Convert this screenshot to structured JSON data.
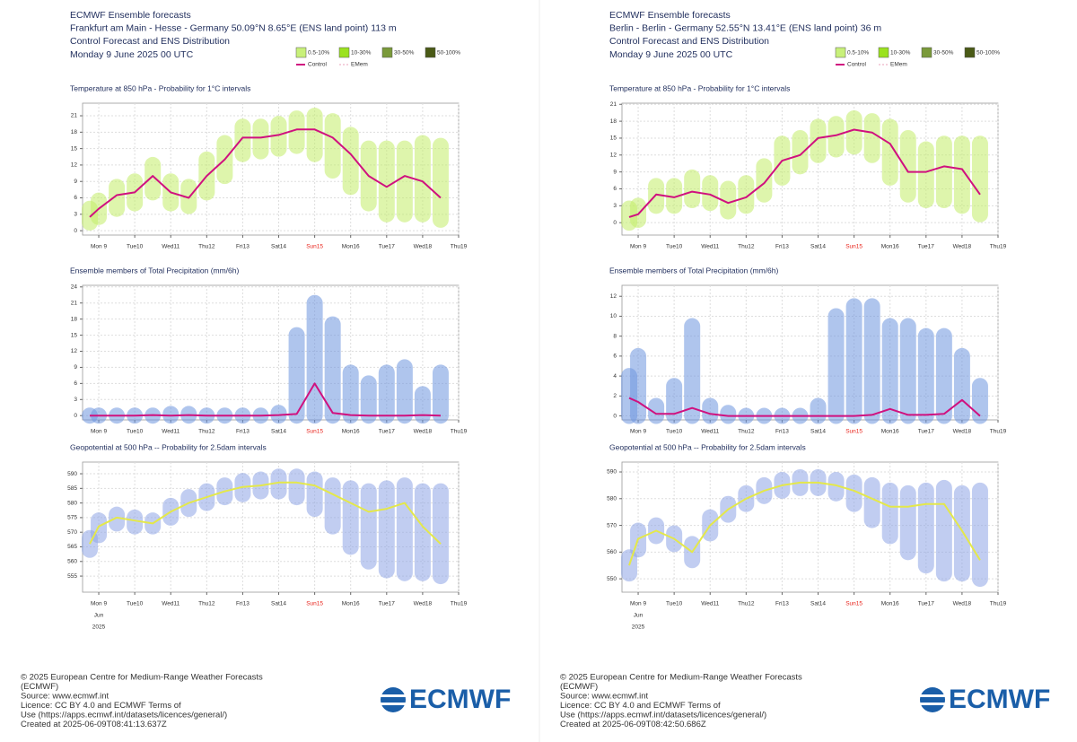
{
  "panels": [
    {
      "header": {
        "lines": [
          "ECMWF Ensemble forecasts",
          "Frankfurt am Main - Hesse - Germany 50.09°N 8.65°E (ENS land point) 113 m",
          "Control Forecast and ENS Distribution",
          "Monday 9 June 2025 00 UTC"
        ]
      },
      "legend": {
        "bins": [
          {
            "label": "0.5-10%",
            "color": "#c8f07a"
          },
          {
            "label": "10-30%",
            "color": "#9be21f"
          },
          {
            "label": "30-50%",
            "color": "#7a9a3a"
          },
          {
            "label": "50-100%",
            "color": "#4a5a16"
          }
        ],
        "lines": [
          {
            "label": "Control",
            "color": "#d0117f"
          },
          {
            "label": "EMem",
            "color": "#e8a0b8"
          }
        ]
      },
      "footer": {
        "lines": [
          "© 2025 European Centre for Medium-Range Weather Forecasts",
          "(ECMWF)",
          "Source: www.ecmwf.int",
          "Licence: CC BY 4.0 and ECMWF Terms of",
          "Use (https://apps.ecmwf.int/datasets/licences/general/)",
          "Created at 2025-06-09T08:41:13.637Z"
        ],
        "logo": "ECMWF"
      }
    },
    {
      "header": {
        "lines": [
          "ECMWF Ensemble forecasts",
          "Berlin - Berlin - Germany 52.55°N 13.41°E (ENS land point) 36 m",
          "Control Forecast and ENS Distribution",
          "Monday 9 June 2025 00 UTC"
        ]
      },
      "legend": {
        "bins": [
          {
            "label": "0.5-10%",
            "color": "#c8f07a"
          },
          {
            "label": "10-30%",
            "color": "#9be21f"
          },
          {
            "label": "30-50%",
            "color": "#7a9a3a"
          },
          {
            "label": "50-100%",
            "color": "#4a5a16"
          }
        ],
        "lines": [
          {
            "label": "Control",
            "color": "#d0117f"
          },
          {
            "label": "EMem",
            "color": "#e8a0b8"
          }
        ]
      },
      "footer": {
        "lines": [
          "© 2025 European Centre for Medium-Range Weather Forecasts",
          "(ECMWF)",
          "Source: www.ecmwf.int",
          "Licence: CC BY 4.0 and ECMWF Terms of",
          "Use (https://apps.ecmwf.int/datasets/licences/general/)",
          "Created at 2025-06-09T08:42:50.686Z"
        ],
        "logo": "ECMWF"
      }
    }
  ],
  "chart_data": [
    {
      "type": "line",
      "title": "Temperature at 850 hPa - Probability for 1°C intervals",
      "xlim": [
        -0.45,
        10
      ],
      "xticks": [
        {
          "value": 0,
          "label": "Mon 9"
        },
        {
          "value": 1,
          "label": "Tue10"
        },
        {
          "value": 2,
          "label": "Wed11"
        },
        {
          "value": 3,
          "label": "Thu12"
        },
        {
          "value": 4,
          "label": "Fri13"
        },
        {
          "value": 5,
          "label": "Sat14"
        },
        {
          "value": 6,
          "label": "Sun15",
          "color": "#e8241c"
        },
        {
          "value": 7,
          "label": "Mon16"
        },
        {
          "value": 8,
          "label": "Tue17"
        },
        {
          "value": 9,
          "label": "Wed18"
        },
        {
          "value": 10,
          "label": "Thu19"
        }
      ],
      "ylim": [
        -0.8,
        23.3
      ],
      "yticks": [
        0,
        3,
        6,
        9,
        12,
        15,
        18,
        21
      ],
      "grid": true,
      "x": [
        -0.25,
        0,
        0.5,
        1,
        1.5,
        2,
        2.5,
        3,
        3.5,
        4,
        4.5,
        5,
        5.5,
        6,
        6.5,
        7,
        7.5,
        8,
        8.5,
        9,
        9.5
      ],
      "spread": {
        "color": "#c4ee6a",
        "low": [
          1.5,
          2.5,
          4,
          5,
          7,
          5,
          4.5,
          7,
          10,
          14,
          14.5,
          15,
          15.5,
          14,
          11,
          8,
          5,
          3,
          3,
          3,
          2
        ],
        "high": [
          4,
          5.5,
          8,
          9,
          12,
          9,
          8,
          13,
          16,
          19,
          19,
          19.5,
          20.5,
          21,
          20,
          17.5,
          15,
          15,
          15,
          16,
          15.5
        ]
      },
      "control": {
        "color": "#d0117f",
        "values": [
          2.5,
          4,
          6.5,
          7,
          10,
          7,
          6,
          10,
          13,
          17,
          17,
          17.5,
          18.5,
          18.5,
          17,
          14,
          10,
          8,
          10,
          9,
          6
        ]
      }
    },
    {
      "type": "line",
      "title": "Ensemble members of Total Precipitation (mm/6h)",
      "xlim": [
        -0.45,
        10
      ],
      "xticks": [
        {
          "value": 0,
          "label": "Mon 9"
        },
        {
          "value": 1,
          "label": "Tue10"
        },
        {
          "value": 2,
          "label": "Wed11"
        },
        {
          "value": 3,
          "label": "Thu12"
        },
        {
          "value": 4,
          "label": "Fri13"
        },
        {
          "value": 5,
          "label": "Sat14"
        },
        {
          "value": 6,
          "label": "Sun15",
          "color": "#e8241c"
        },
        {
          "value": 7,
          "label": "Mon16"
        },
        {
          "value": 8,
          "label": "Tue17"
        },
        {
          "value": 9,
          "label": "Wed18"
        },
        {
          "value": 10,
          "label": "Thu19"
        }
      ],
      "ylim": [
        -0.8,
        24.3
      ],
      "yticks": [
        0,
        3,
        6,
        9,
        12,
        15,
        18,
        21,
        24
      ],
      "grid": true,
      "x": [
        -0.25,
        0,
        0.5,
        1,
        1.5,
        2,
        2.5,
        3,
        3.5,
        4,
        4.5,
        5,
        5.5,
        6,
        6.5,
        7,
        7.5,
        8,
        8.5,
        9,
        9.5
      ],
      "spread": {
        "color": "#6f96e0",
        "low": [
          0,
          0,
          0,
          0,
          0,
          0,
          0,
          0,
          0,
          0,
          0,
          0,
          0,
          0,
          0,
          0,
          0,
          0,
          0,
          0,
          0
        ],
        "high": [
          0,
          0,
          0,
          0,
          0,
          0.3,
          0.3,
          0,
          0,
          0,
          0,
          0.5,
          15,
          21,
          17,
          8,
          6,
          8,
          9,
          4,
          8
        ]
      },
      "control": {
        "color": "#d0117f",
        "values": [
          0,
          0,
          0,
          0,
          0.1,
          0,
          0.1,
          0,
          0,
          0,
          0,
          0.1,
          0.3,
          6,
          0.5,
          0.1,
          0,
          0,
          0,
          0.1,
          0
        ]
      }
    },
    {
      "type": "line",
      "title": "Geopotential at 500 hPa -- Probability for 2.5dam intervals",
      "xlim": [
        -0.45,
        10
      ],
      "xticks": [
        {
          "value": 0,
          "label": "Mon 9"
        },
        {
          "value": 1,
          "label": "Tue10"
        },
        {
          "value": 2,
          "label": "Wed11"
        },
        {
          "value": 3,
          "label": "Thu12"
        },
        {
          "value": 4,
          "label": "Fri13"
        },
        {
          "value": 5,
          "label": "Sat14"
        },
        {
          "value": 6,
          "label": "Sun15",
          "color": "#e8241c"
        },
        {
          "value": 7,
          "label": "Mon16"
        },
        {
          "value": 8,
          "label": "Tue17"
        },
        {
          "value": 9,
          "label": "Wed18"
        },
        {
          "value": 10,
          "label": "Thu19"
        }
      ],
      "date_labels": [
        "Jun",
        "2025"
      ],
      "ylim": [
        549.5,
        594
      ],
      "yticks": [
        555,
        560,
        565,
        570,
        575,
        580,
        585,
        590
      ],
      "grid": true,
      "x": [
        -0.25,
        0,
        0.5,
        1,
        1.5,
        2,
        2.5,
        3,
        3.5,
        4,
        4.5,
        5,
        5.5,
        6,
        6.5,
        7,
        7.5,
        8,
        8.5,
        9,
        9.5
      ],
      "spread": {
        "color": "#8fa6e6",
        "low": [
          564,
          569,
          573,
          572,
          572,
          575,
          578,
          580,
          582,
          583,
          584,
          584,
          582,
          578,
          572,
          565,
          560,
          557,
          556,
          556,
          555
        ],
        "high": [
          568,
          574,
          576,
          575,
          574,
          579,
          582,
          584,
          586,
          587.5,
          588,
          589,
          589,
          588,
          586,
          585,
          584,
          585,
          586,
          584,
          584
        ]
      },
      "control": {
        "color": "#e4e84a",
        "values": [
          566,
          572,
          575,
          574,
          573,
          577,
          580,
          582,
          584,
          585.5,
          586,
          587,
          587,
          586,
          583,
          580,
          577,
          578,
          580,
          572,
          566
        ]
      }
    },
    {
      "type": "line",
      "title": "Temperature at 850 hPa - Probability for 1°C intervals",
      "xlim": [
        -0.45,
        10
      ],
      "xticks": [
        {
          "value": 0,
          "label": "Mon 9"
        },
        {
          "value": 1,
          "label": "Tue10"
        },
        {
          "value": 2,
          "label": "Wed11"
        },
        {
          "value": 3,
          "label": "Thu12"
        },
        {
          "value": 4,
          "label": "Fri13"
        },
        {
          "value": 5,
          "label": "Sat14"
        },
        {
          "value": 6,
          "label": "Sun15",
          "color": "#e8241c"
        },
        {
          "value": 7,
          "label": "Mon16"
        },
        {
          "value": 8,
          "label": "Tue17"
        },
        {
          "value": 9,
          "label": "Wed18"
        },
        {
          "value": 10,
          "label": "Thu19"
        }
      ],
      "ylim": [
        -2.2,
        21.2
      ],
      "yticks": [
        0,
        3,
        6,
        9,
        12,
        15,
        18,
        21
      ],
      "grid": true,
      "x": [
        -0.25,
        0,
        0.5,
        1,
        1.5,
        2,
        2.5,
        3,
        3.5,
        4,
        4.5,
        5,
        5.5,
        6,
        6.5,
        7,
        7.5,
        8,
        8.5,
        9,
        9.5
      ],
      "spread": {
        "color": "#c4ee6a",
        "low": [
          0,
          0.5,
          3,
          3,
          4,
          3.5,
          2,
          3,
          5,
          8,
          10,
          12,
          13,
          13.5,
          12,
          8,
          5,
          4,
          4,
          3,
          1.5
        ],
        "high": [
          2.5,
          3,
          6.5,
          6.5,
          8,
          7,
          6,
          7,
          10,
          14,
          15,
          17,
          17.5,
          18.5,
          18,
          17,
          15,
          13,
          14,
          14,
          14
        ]
      },
      "control": {
        "color": "#d0117f",
        "values": [
          1,
          1.5,
          5,
          4.5,
          5.5,
          5,
          3.5,
          4.5,
          7,
          11,
          12,
          15,
          15.5,
          16.5,
          16,
          14,
          9,
          9,
          10,
          9.5,
          5
        ]
      }
    },
    {
      "type": "line",
      "title": "Ensemble members of Total Precipitation (mm/6h)",
      "xlim": [
        -0.45,
        10
      ],
      "xticks": [
        {
          "value": 0,
          "label": "Mon 9"
        },
        {
          "value": 1,
          "label": "Tue10"
        },
        {
          "value": 2,
          "label": "Wed11"
        },
        {
          "value": 3,
          "label": "Thu12"
        },
        {
          "value": 4,
          "label": "Fri13"
        },
        {
          "value": 5,
          "label": "Sat14"
        },
        {
          "value": 6,
          "label": "Sun15",
          "color": "#e8241c"
        },
        {
          "value": 7,
          "label": "Mon16"
        },
        {
          "value": 8,
          "label": "Tue17"
        },
        {
          "value": 9,
          "label": "Wed18"
        },
        {
          "value": 10,
          "label": "Thu19"
        }
      ],
      "ylim": [
        -0.4,
        13.1
      ],
      "yticks": [
        0,
        2,
        4,
        6,
        8,
        10,
        12
      ],
      "grid": true,
      "x": [
        -0.25,
        0,
        0.5,
        1,
        1.5,
        2,
        2.5,
        3,
        3.5,
        4,
        4.5,
        5,
        5.5,
        6,
        6.5,
        7,
        7.5,
        8,
        8.5,
        9,
        9.5
      ],
      "spread": {
        "color": "#6f96e0",
        "low": [
          0,
          0,
          0,
          0,
          0,
          0,
          0,
          0,
          0,
          0,
          0,
          0,
          0,
          0,
          0,
          0,
          0,
          0,
          0,
          0,
          0
        ],
        "high": [
          4,
          6,
          1,
          3,
          9,
          1,
          0.3,
          0,
          0,
          0,
          0,
          1,
          10,
          11,
          11,
          9,
          9,
          8,
          8,
          6,
          3
        ]
      },
      "control": {
        "color": "#d0117f",
        "values": [
          1.8,
          1.4,
          0.2,
          0.2,
          0.8,
          0.2,
          0,
          0,
          0,
          0,
          0,
          0,
          0,
          0,
          0.1,
          0.7,
          0.1,
          0.1,
          0.2,
          1.6,
          0
        ]
      }
    },
    {
      "type": "line",
      "title": "Geopotential at 500 hPa -- Probability for 2.5dam intervals",
      "xlim": [
        -0.45,
        10
      ],
      "xticks": [
        {
          "value": 0,
          "label": "Mon 9"
        },
        {
          "value": 1,
          "label": "Tue10"
        },
        {
          "value": 2,
          "label": "Wed11"
        },
        {
          "value": 3,
          "label": "Thu12"
        },
        {
          "value": 4,
          "label": "Fri13"
        },
        {
          "value": 5,
          "label": "Sat14"
        },
        {
          "value": 6,
          "label": "Sun15",
          "color": "#e8241c"
        },
        {
          "value": 7,
          "label": "Mon16"
        },
        {
          "value": 8,
          "label": "Tue17"
        },
        {
          "value": 9,
          "label": "Wed18"
        },
        {
          "value": 10,
          "label": "Thu19"
        }
      ],
      "date_labels": [
        "Jun",
        "2025"
      ],
      "ylim": [
        545,
        593.7
      ],
      "yticks": [
        550,
        560,
        570,
        580,
        590
      ],
      "grid": true,
      "x": [
        -0.25,
        0,
        0.5,
        1,
        1.5,
        2,
        2.5,
        3,
        3.5,
        4,
        4.5,
        5,
        5.5,
        6,
        6.5,
        7,
        7.5,
        8,
        8.5,
        9,
        9.5
      ],
      "spread": {
        "color": "#8fa6e6",
        "low": [
          552,
          561,
          566,
          563,
          557,
          567,
          574,
          578,
          581,
          583,
          584,
          584,
          582,
          578,
          572,
          566,
          560,
          555,
          552,
          552,
          550
        ],
        "high": [
          558,
          568,
          570,
          567,
          563,
          573,
          578,
          582,
          585,
          587,
          588,
          588,
          587,
          586,
          585,
          583,
          582,
          583,
          584,
          582,
          583
        ]
      },
      "control": {
        "color": "#e4e84a",
        "values": [
          555,
          565,
          568,
          565,
          560,
          570,
          576,
          580,
          583,
          585,
          586,
          586,
          585,
          583,
          580,
          577,
          577,
          578,
          578,
          568,
          557
        ]
      }
    }
  ]
}
